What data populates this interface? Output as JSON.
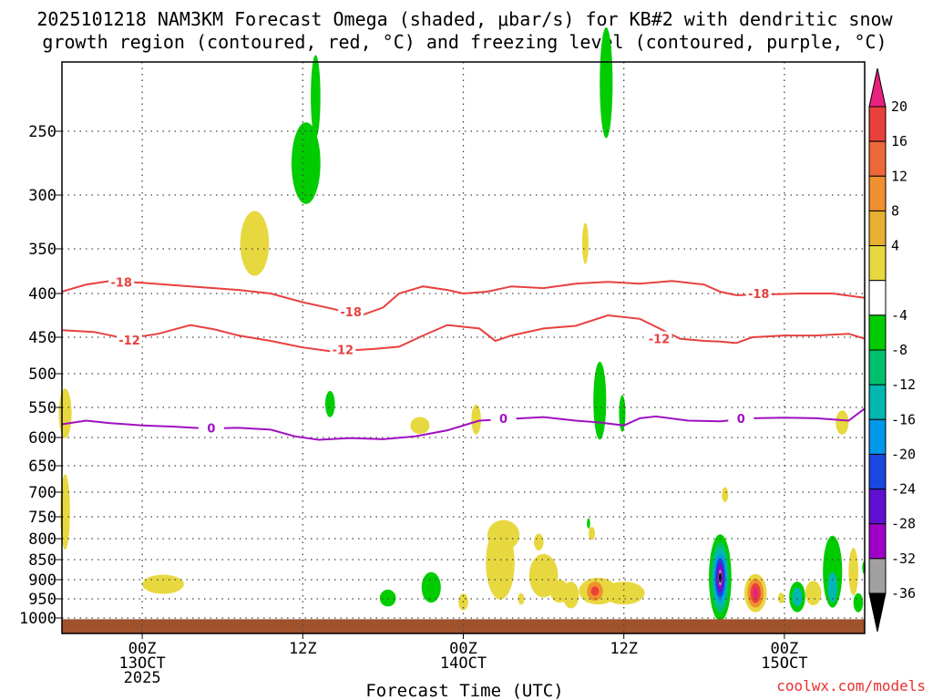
{
  "chart_data": {
    "type": "heatmap",
    "title_line1": "2025101218 NAM3KM Forecast Omega (shaded, μbar/s) for KB#2 with dendritic snow",
    "title_line2": "growth region (contoured, red, °C) and freezing level (contoured, purple, °C)",
    "xlabel": "Forecast Time (UTC)",
    "credit": "coolwx.com/models",
    "x_range_hours": [
      -5,
      45
    ],
    "y_range_hpa": [
      1025,
      200
    ],
    "y_ticks": [
      {
        "value": 250,
        "label": "250"
      },
      {
        "value": 300,
        "label": "300"
      },
      {
        "value": 350,
        "label": "350"
      },
      {
        "value": 400,
        "label": "400"
      },
      {
        "value": 450,
        "label": "450"
      },
      {
        "value": 500,
        "label": "500"
      },
      {
        "value": 550,
        "label": "550"
      },
      {
        "value": 600,
        "label": "600"
      },
      {
        "value": 650,
        "label": "650"
      },
      {
        "value": 700,
        "label": "700"
      },
      {
        "value": 750,
        "label": "750"
      },
      {
        "value": 800,
        "label": "800"
      },
      {
        "value": 850,
        "label": "850"
      },
      {
        "value": 900,
        "label": "900"
      },
      {
        "value": 950,
        "label": "950"
      },
      {
        "value": 1000,
        "label": "1000"
      }
    ],
    "x_ticks": [
      {
        "hour": 0,
        "lines": [
          "00Z",
          "13OCT",
          "2025"
        ]
      },
      {
        "hour": 10,
        "lines": [
          "12Z"
        ]
      },
      {
        "hour": 20,
        "lines": [
          "00Z",
          "14OCT"
        ]
      },
      {
        "hour": 30,
        "lines": [
          "12Z"
        ]
      },
      {
        "hour": 40,
        "lines": [
          "00Z",
          "15OCT"
        ]
      }
    ],
    "colorbar": {
      "labels": [
        "20",
        "16",
        "12",
        "8",
        "4",
        "-4",
        "-8",
        "-12",
        "-16",
        "-20",
        "-24",
        "-28",
        "-32",
        "-36"
      ],
      "bands": [
        {
          "color": "#e8207e"
        },
        {
          "color": "#e8403a"
        },
        {
          "color": "#ee6838"
        },
        {
          "color": "#f0902e"
        },
        {
          "color": "#e8b030"
        },
        {
          "color": "#e8d840"
        },
        {
          "color": "#ffffff"
        },
        {
          "color": "#00cc00"
        },
        {
          "color": "#00c070"
        },
        {
          "color": "#00b8b0"
        },
        {
          "color": "#0098e8"
        },
        {
          "color": "#1848e0"
        },
        {
          "color": "#6010d0"
        },
        {
          "color": "#a000c8"
        },
        {
          "color": "#a0a0a0"
        },
        {
          "color": "#000000"
        }
      ]
    },
    "contours": [
      {
        "name": "dgz-minus18",
        "color": "#e84040",
        "label": "-18",
        "points": [
          [
            -5,
            398
          ],
          [
            -3.5,
            390
          ],
          [
            -2,
            386
          ],
          [
            0,
            388
          ],
          [
            3,
            392
          ],
          [
            6,
            396
          ],
          [
            8,
            400
          ],
          [
            10,
            410
          ],
          [
            12,
            418
          ],
          [
            13.5,
            426
          ],
          [
            15,
            416
          ],
          [
            16,
            400
          ],
          [
            17.5,
            392
          ],
          [
            19,
            396
          ],
          [
            20,
            400
          ],
          [
            21.5,
            398
          ],
          [
            23,
            392
          ],
          [
            25,
            394
          ],
          [
            27,
            389
          ],
          [
            29,
            387
          ],
          [
            31,
            389
          ],
          [
            33,
            386
          ],
          [
            35,
            390
          ],
          [
            36,
            398
          ],
          [
            37,
            402
          ],
          [
            39,
            401
          ],
          [
            41,
            400
          ],
          [
            43,
            400
          ],
          [
            45,
            405
          ]
        ],
        "labels_at": [
          [
            -1.3,
            387
          ],
          [
            13,
            421
          ],
          [
            38.4,
            400
          ]
        ]
      },
      {
        "name": "dgz-minus12",
        "color": "#e84040",
        "label": "-12",
        "points": [
          [
            -5,
            442
          ],
          [
            -3,
            444
          ],
          [
            -1,
            452
          ],
          [
            1,
            446
          ],
          [
            3,
            436
          ],
          [
            4.5,
            441
          ],
          [
            6,
            448
          ],
          [
            8,
            455
          ],
          [
            10,
            464
          ],
          [
            12,
            470
          ],
          [
            13,
            468
          ],
          [
            14.5,
            466
          ],
          [
            16,
            463
          ],
          [
            17.5,
            448
          ],
          [
            19,
            436
          ],
          [
            21,
            440
          ],
          [
            22,
            455
          ],
          [
            23,
            448
          ],
          [
            25,
            440
          ],
          [
            27,
            437
          ],
          [
            29,
            425
          ],
          [
            31,
            429
          ],
          [
            32,
            438
          ],
          [
            33.5,
            452
          ],
          [
            35,
            455
          ],
          [
            36,
            456
          ],
          [
            37,
            458
          ],
          [
            38,
            450
          ],
          [
            40,
            448
          ],
          [
            42,
            448
          ],
          [
            44,
            446
          ],
          [
            45,
            452
          ]
        ],
        "labels_at": [
          [
            -0.8,
            454
          ],
          [
            12.5,
            467
          ],
          [
            32.2,
            452
          ]
        ]
      },
      {
        "name": "freezing-level",
        "color": "#a010c0",
        "label": "0",
        "points": [
          [
            -5,
            578
          ],
          [
            -3.5,
            572
          ],
          [
            -2,
            576
          ],
          [
            0,
            580
          ],
          [
            2,
            582
          ],
          [
            4,
            585
          ],
          [
            6,
            584
          ],
          [
            8,
            587
          ],
          [
            9.5,
            598
          ],
          [
            11,
            604
          ],
          [
            13,
            601
          ],
          [
            15,
            603
          ],
          [
            17,
            598
          ],
          [
            19,
            588
          ],
          [
            21,
            572
          ],
          [
            23,
            569
          ],
          [
            25,
            566
          ],
          [
            27,
            572
          ],
          [
            28.5,
            575
          ],
          [
            30,
            580
          ],
          [
            31,
            568
          ],
          [
            32,
            565
          ],
          [
            34,
            572
          ],
          [
            36,
            573
          ],
          [
            38,
            568
          ],
          [
            40,
            567
          ],
          [
            42,
            568
          ],
          [
            44,
            572
          ],
          [
            45,
            552
          ]
        ],
        "labels_at": [
          [
            4.3,
            584
          ],
          [
            22.5,
            568
          ],
          [
            37.3,
            568
          ]
        ]
      }
    ],
    "shaded_regions": [
      {
        "name": "g1",
        "color": "#00cc00",
        "cx": 10.2,
        "cy": 275,
        "rx": 0.9,
        "ry": 32
      },
      {
        "name": "g2",
        "color": "#00cc00",
        "cx": 10.8,
        "cy": 225,
        "rx": 0.3,
        "ry": 30
      },
      {
        "name": "y1",
        "color": "#e8d840",
        "cx": 7.0,
        "cy": 345,
        "rx": 0.9,
        "ry": 32
      },
      {
        "name": "g3",
        "color": "#00cc00",
        "cx": 28.9,
        "cy": 215,
        "rx": 0.4,
        "ry": 40
      },
      {
        "name": "y2",
        "color": "#e8d840",
        "cx": 27.6,
        "cy": 345,
        "rx": 0.2,
        "ry": 20
      },
      {
        "name": "y3",
        "color": "#e8d840",
        "cx": -4.8,
        "cy": 560,
        "rx": 0.4,
        "ry": 40
      },
      {
        "name": "y3b",
        "color": "#e8d840",
        "cx": -4.8,
        "cy": 740,
        "rx": 0.3,
        "ry": 80
      },
      {
        "name": "g4",
        "color": "#00cc00",
        "cx": 11.7,
        "cy": 545,
        "rx": 0.3,
        "ry": 20
      },
      {
        "name": "y4",
        "color": "#e8d840",
        "cx": 17.3,
        "cy": 580,
        "rx": 0.6,
        "ry": 14
      },
      {
        "name": "y5",
        "color": "#e8d840",
        "cx": 20.8,
        "cy": 570,
        "rx": 0.3,
        "ry": 25
      },
      {
        "name": "g5",
        "color": "#00cc00",
        "cx": 28.5,
        "cy": 540,
        "rx": 0.4,
        "ry": 60
      },
      {
        "name": "g6",
        "color": "#00cc00",
        "cx": 29.9,
        "cy": 560,
        "rx": 0.2,
        "ry": 30
      },
      {
        "name": "y6",
        "color": "#e8d840",
        "cx": 43.6,
        "cy": 575,
        "rx": 0.4,
        "ry": 20
      },
      {
        "name": "y7",
        "color": "#e8d840",
        "cx": 36.3,
        "cy": 705,
        "rx": 0.2,
        "ry": 15
      },
      {
        "name": "y8",
        "color": "#e8d840",
        "cx": 1.3,
        "cy": 912,
        "rx": 1.3,
        "ry": 25
      },
      {
        "name": "g7",
        "color": "#00cc00",
        "cx": 15.3,
        "cy": 948,
        "rx": 0.5,
        "ry": 22
      },
      {
        "name": "g8",
        "color": "#00cc00",
        "cx": 18.0,
        "cy": 920,
        "rx": 0.6,
        "ry": 40
      },
      {
        "name": "y9",
        "color": "#e8d840",
        "cx": 24.7,
        "cy": 808,
        "rx": 0.3,
        "ry": 20
      },
      {
        "name": "y10",
        "color": "#e8d840",
        "cx": 25.5,
        "cy": 882,
        "rx": 0.2,
        "ry": 22
      },
      {
        "name": "y11",
        "color": "#e8d840",
        "cx": 22.3,
        "cy": 858,
        "rx": 0.9,
        "ry": 90
      },
      {
        "name": "y12",
        "color": "#e8d840",
        "cx": 22.5,
        "cy": 792,
        "rx": 1.0,
        "ry": 35
      },
      {
        "name": "y13",
        "color": "#e8d840",
        "cx": 20.0,
        "cy": 958,
        "rx": 0.3,
        "ry": 22
      },
      {
        "name": "y14",
        "color": "#e8d840",
        "cx": 23.6,
        "cy": 950,
        "rx": 0.2,
        "ry": 15
      },
      {
        "name": "y15",
        "color": "#e8d840",
        "cx": 25.0,
        "cy": 890,
        "rx": 0.9,
        "ry": 55
      },
      {
        "name": "y16",
        "color": "#e8d840",
        "cx": 26.0,
        "cy": 930,
        "rx": 0.6,
        "ry": 30
      },
      {
        "name": "y17",
        "color": "#e8d840",
        "cx": 26.7,
        "cy": 940,
        "rx": 0.5,
        "ry": 35
      },
      {
        "name": "y18",
        "color": "#e8d840",
        "cx": 28.4,
        "cy": 930,
        "rx": 1.2,
        "ry": 35
      },
      {
        "name": "o1",
        "color": "#f0902e",
        "cx": 28.2,
        "cy": 930,
        "rx": 0.5,
        "ry": 25
      },
      {
        "name": "r1",
        "color": "#e8403a",
        "cx": 28.2,
        "cy": 930,
        "rx": 0.25,
        "ry": 12
      },
      {
        "name": "y19",
        "color": "#e8d840",
        "cx": 30.0,
        "cy": 935,
        "rx": 1.3,
        "ry": 30
      },
      {
        "name": "g9",
        "color": "#00cc00",
        "cx": 27.8,
        "cy": 765,
        "rx": 0.1,
        "ry": 12
      },
      {
        "name": "y20",
        "color": "#e8d840",
        "cx": 28.0,
        "cy": 788,
        "rx": 0.2,
        "ry": 15
      },
      {
        "name": "g10",
        "color": "#00cc00",
        "cx": 36.0,
        "cy": 895,
        "rx": 0.7,
        "ry": 110
      },
      {
        "name": "c1",
        "color": "#00c070",
        "cx": 36.0,
        "cy": 895,
        "rx": 0.55,
        "ry": 90
      },
      {
        "name": "c2",
        "color": "#00b8b0",
        "cx": 36.0,
        "cy": 895,
        "rx": 0.45,
        "ry": 75
      },
      {
        "name": "c3",
        "color": "#0098e8",
        "cx": 36.0,
        "cy": 895,
        "rx": 0.38,
        "ry": 62
      },
      {
        "name": "c4",
        "color": "#1848e0",
        "cx": 36.0,
        "cy": 895,
        "rx": 0.3,
        "ry": 50
      },
      {
        "name": "c5",
        "color": "#6010d0",
        "cx": 36.0,
        "cy": 895,
        "rx": 0.22,
        "ry": 38
      },
      {
        "name": "c6",
        "color": "#a000c8",
        "cx": 36.0,
        "cy": 895,
        "rx": 0.15,
        "ry": 28
      },
      {
        "name": "c7",
        "color": "#a0a0a0",
        "cx": 36.0,
        "cy": 895,
        "rx": 0.1,
        "ry": 20
      },
      {
        "name": "c8",
        "color": "#000000",
        "cx": 36.0,
        "cy": 895,
        "rx": 0.05,
        "ry": 12
      },
      {
        "name": "y21",
        "color": "#e8d840",
        "cx": 38.2,
        "cy": 935,
        "rx": 0.7,
        "ry": 50
      },
      {
        "name": "o2",
        "color": "#f0902e",
        "cx": 38.2,
        "cy": 935,
        "rx": 0.5,
        "ry": 38
      },
      {
        "name": "r2",
        "color": "#e8403a",
        "cx": 38.2,
        "cy": 935,
        "rx": 0.32,
        "ry": 26
      },
      {
        "name": "m2",
        "color": "#e8207e",
        "cx": 38.2,
        "cy": 935,
        "rx": 0.15,
        "ry": 14
      },
      {
        "name": "y22",
        "color": "#e8d840",
        "cx": 39.8,
        "cy": 948,
        "rx": 0.2,
        "ry": 14
      },
      {
        "name": "g11",
        "color": "#00cc00",
        "cx": 40.8,
        "cy": 945,
        "rx": 0.5,
        "ry": 40
      },
      {
        "name": "c9",
        "color": "#00b8b0",
        "cx": 40.8,
        "cy": 945,
        "rx": 0.3,
        "ry": 25
      },
      {
        "name": "y23",
        "color": "#e8d840",
        "cx": 41.8,
        "cy": 935,
        "rx": 0.5,
        "ry": 32
      },
      {
        "name": "g12",
        "color": "#00cc00",
        "cx": 43.0,
        "cy": 880,
        "rx": 0.6,
        "ry": 90
      },
      {
        "name": "c10",
        "color": "#00b8b0",
        "cx": 43.0,
        "cy": 920,
        "rx": 0.3,
        "ry": 40
      },
      {
        "name": "y24",
        "color": "#e8d840",
        "cx": 44.3,
        "cy": 880,
        "rx": 0.3,
        "ry": 60
      },
      {
        "name": "g13",
        "color": "#00cc00",
        "cx": 44.6,
        "cy": 960,
        "rx": 0.3,
        "ry": 25
      },
      {
        "name": "g14",
        "color": "#00cc00",
        "cx": 44.95,
        "cy": 870,
        "rx": 0.1,
        "ry": 15
      }
    ],
    "ground": {
      "color": "#a0522d",
      "top_hpa": 1002
    }
  }
}
